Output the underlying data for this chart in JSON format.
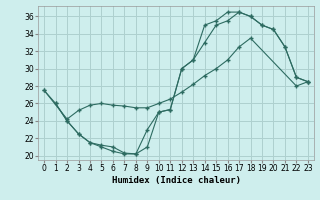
{
  "title": "",
  "xlabel": "Humidex (Indice chaleur)",
  "background_color": "#ceeeed",
  "grid_color": "#aed0cf",
  "line_color": "#2d6b61",
  "xlim": [
    -0.5,
    23.5
  ],
  "ylim": [
    19.5,
    37.2
  ],
  "xticks": [
    0,
    1,
    2,
    3,
    4,
    5,
    6,
    7,
    8,
    9,
    10,
    11,
    12,
    13,
    14,
    15,
    16,
    17,
    18,
    19,
    20,
    21,
    22,
    23
  ],
  "yticks": [
    20,
    22,
    24,
    26,
    28,
    30,
    32,
    34,
    36
  ],
  "line1_x": [
    0,
    1,
    2,
    3,
    4,
    5,
    6,
    7,
    8,
    9,
    10,
    11,
    12,
    13,
    14,
    15,
    16,
    17,
    18,
    19,
    20,
    21,
    22,
    23
  ],
  "line1_y": [
    27.5,
    26,
    24,
    22.5,
    21.5,
    21,
    20.5,
    20.2,
    20.2,
    23,
    25,
    25.3,
    30,
    31,
    35,
    35.5,
    36.5,
    36.5,
    36,
    35,
    34.5,
    32.5,
    29,
    28.5
  ],
  "line2_x": [
    0,
    2,
    3,
    4,
    5,
    6,
    7,
    8,
    9,
    10,
    11,
    12,
    13,
    14,
    15,
    16,
    17,
    18,
    22,
    23
  ],
  "line2_y": [
    27.5,
    24.2,
    25.2,
    25.8,
    26.0,
    25.8,
    25.7,
    25.5,
    25.5,
    26,
    26.5,
    27.3,
    28.2,
    29.2,
    30,
    31,
    32.5,
    33.5,
    28,
    28.5
  ],
  "line3_x": [
    1,
    2,
    3,
    4,
    5,
    6,
    7,
    8,
    9,
    10,
    11,
    12,
    13,
    14,
    15,
    16,
    17,
    18,
    19,
    20,
    21,
    22,
    23
  ],
  "line3_y": [
    26,
    24,
    22.5,
    21.5,
    21.2,
    21.0,
    20.3,
    20.2,
    21.0,
    25.0,
    25.3,
    30,
    31,
    33,
    35,
    35.5,
    36.5,
    36.0,
    35,
    34.5,
    32.5,
    29.0,
    28.5
  ]
}
